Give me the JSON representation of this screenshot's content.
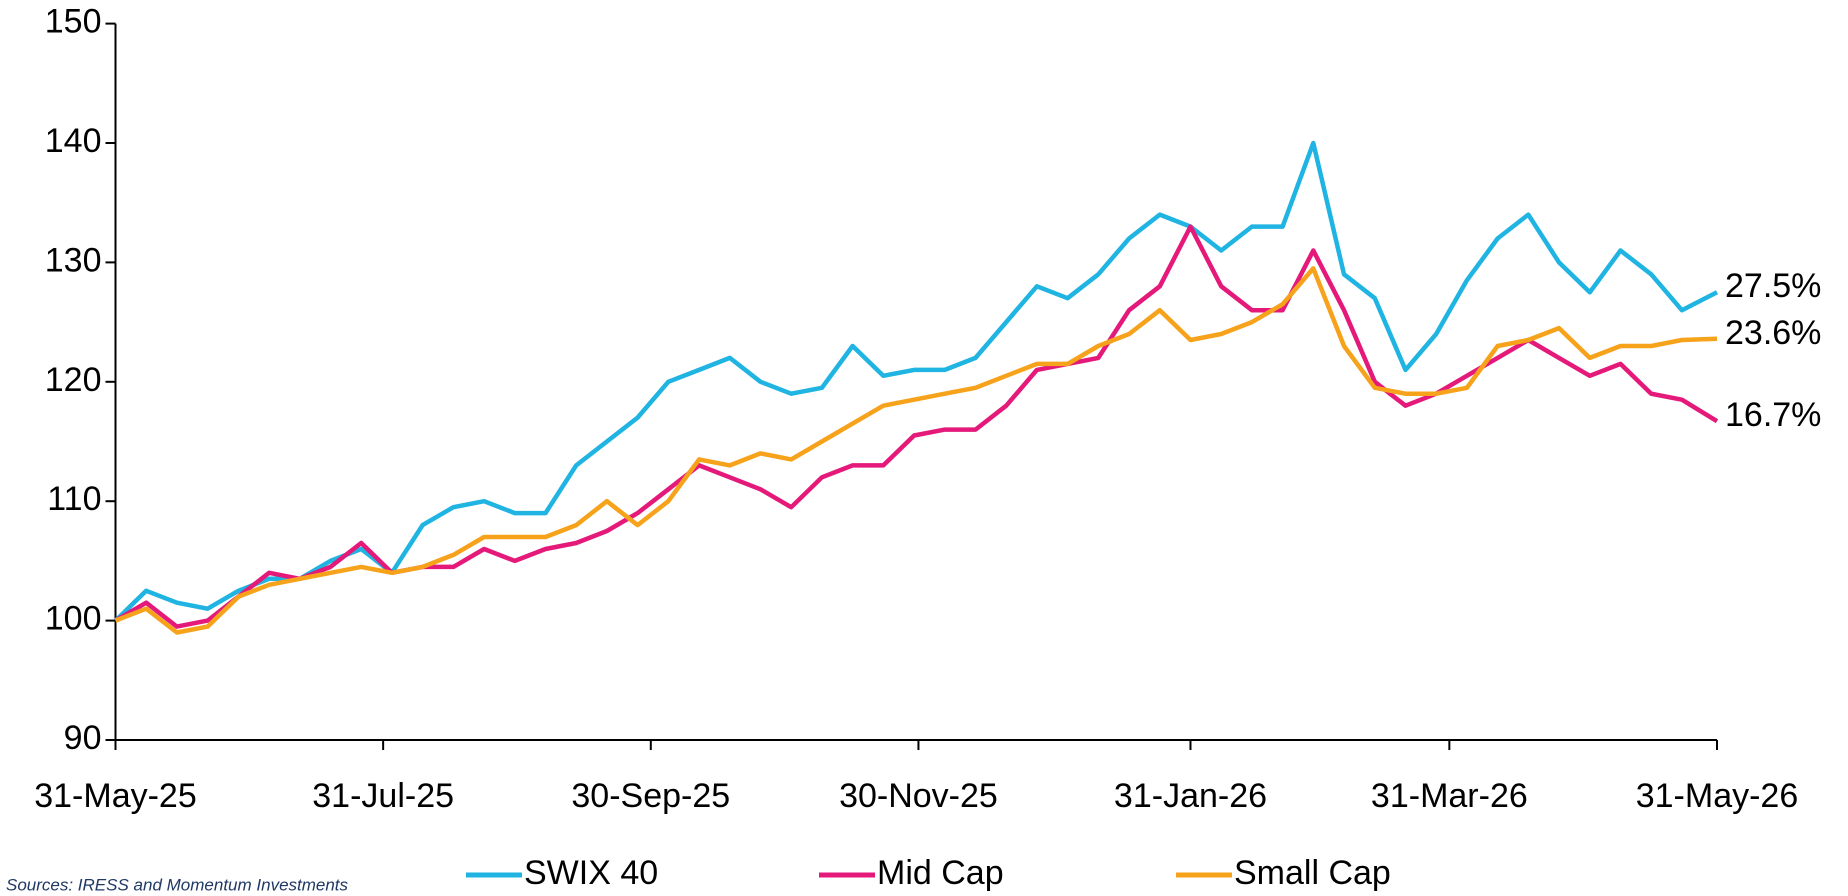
{
  "chart_data": {
    "type": "line",
    "x": [
      "2025-05-31",
      "2025-06-07",
      "2025-06-14",
      "2025-06-21",
      "2025-06-28",
      "2025-07-05",
      "2025-07-12",
      "2025-07-19",
      "2025-07-26",
      "2025-08-02",
      "2025-08-09",
      "2025-08-16",
      "2025-08-23",
      "2025-08-30",
      "2025-09-06",
      "2025-09-13",
      "2025-09-20",
      "2025-09-27",
      "2025-10-04",
      "2025-10-11",
      "2025-10-18",
      "2025-10-25",
      "2025-11-01",
      "2025-11-08",
      "2025-11-15",
      "2025-11-22",
      "2025-11-29",
      "2025-12-06",
      "2025-12-13",
      "2025-12-20",
      "2025-12-27",
      "2026-01-03",
      "2026-01-10",
      "2026-01-17",
      "2026-01-24",
      "2026-01-31",
      "2026-02-07",
      "2026-02-14",
      "2026-02-21",
      "2026-02-28",
      "2026-03-07",
      "2026-03-14",
      "2026-03-21",
      "2026-03-28",
      "2026-04-04",
      "2026-04-11",
      "2026-04-18",
      "2026-04-25",
      "2026-05-02",
      "2026-05-09",
      "2026-05-16",
      "2026-05-23",
      "2026-05-31"
    ],
    "series": [
      {
        "name": "SWIX 40",
        "color": "#1fb4e2",
        "end_label": "27.5%",
        "values": [
          100,
          102.5,
          101.5,
          101,
          102.5,
          103.5,
          103.5,
          105,
          106,
          104,
          108,
          109.5,
          110,
          109,
          109,
          113,
          115,
          117,
          120,
          121,
          122,
          120,
          119,
          119.5,
          123,
          120.5,
          121,
          121,
          122,
          125,
          128,
          127,
          129,
          132,
          134,
          133,
          131,
          133,
          133,
          140,
          129,
          127,
          121,
          124,
          128.5,
          132,
          134,
          130,
          127.5,
          131,
          129,
          126,
          127.5
        ]
      },
      {
        "name": "Mid Cap",
        "color": "#e4197a",
        "end_label": "16.7%",
        "values": [
          100,
          101.5,
          99.5,
          100,
          102,
          104,
          103.5,
          104.5,
          106.5,
          104,
          104.5,
          104.5,
          106,
          105,
          106,
          106.5,
          107.5,
          109,
          111,
          113,
          112,
          111,
          109.5,
          112,
          113,
          113,
          115.5,
          116,
          116,
          118,
          121,
          121.5,
          122,
          126,
          128,
          133,
          128,
          126,
          126,
          131,
          126,
          120,
          118,
          119,
          120.5,
          122,
          123.5,
          122,
          120.5,
          121.5,
          119,
          118.5,
          116.7
        ]
      },
      {
        "name": "Small Cap",
        "color": "#f7a21b",
        "end_label": "23.6%",
        "values": [
          100,
          101,
          99,
          99.5,
          102,
          103,
          103.5,
          104,
          104.5,
          104,
          104.5,
          105.5,
          107,
          107,
          107,
          108,
          110,
          108,
          110,
          113.5,
          113,
          114,
          113.5,
          115,
          116.5,
          118,
          118.5,
          119,
          119.5,
          120.5,
          121.5,
          121.5,
          123,
          124,
          126,
          123.5,
          124,
          125,
          126.5,
          129.5,
          123,
          119.5,
          119,
          119,
          119.5,
          123,
          123.5,
          124.5,
          122,
          123,
          123,
          123.5,
          123.6
        ]
      }
    ],
    "xlim": [
      "2025-05-31",
      "2026-05-31"
    ],
    "xticks": [
      {
        "value": "2025-05-31",
        "label": "31-May-25"
      },
      {
        "value": "2025-07-31",
        "label": "31-Jul-25"
      },
      {
        "value": "2025-09-30",
        "label": "30-Sep-25"
      },
      {
        "value": "2025-11-30",
        "label": "30-Nov-25"
      },
      {
        "value": "2026-01-31",
        "label": "31-Jan-26"
      },
      {
        "value": "2026-03-31",
        "label": "31-Mar-26"
      },
      {
        "value": "2026-05-31",
        "label": "31-May-26"
      }
    ],
    "ylim": [
      90,
      150
    ],
    "yticks": [
      90,
      100,
      110,
      120,
      130,
      140,
      150
    ],
    "grid": false,
    "legend": "bottom",
    "source": "Sources: IRESS and Momentum Investments"
  }
}
